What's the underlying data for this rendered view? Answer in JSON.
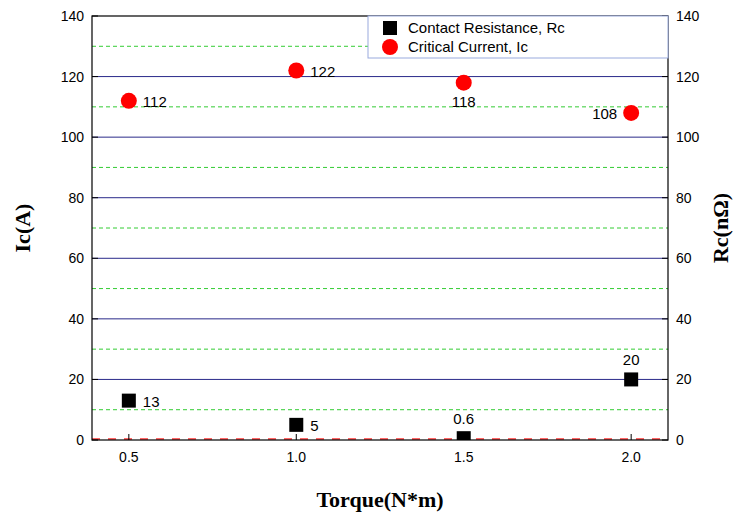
{
  "chart_data": {
    "type": "scatter",
    "x_label": "Torque(N*m)",
    "y_label": "Ic(A)",
    "y2_label": "Rc(nΩ)",
    "x": [
      0.5,
      1.0,
      1.5,
      2.0
    ],
    "series": [
      {
        "name": "Contact Resistance, Rc",
        "color": "#000000",
        "marker": "square",
        "axis": "y2",
        "values": [
          13,
          5,
          0.6,
          20
        ]
      },
      {
        "name": "Critical Current, Ic",
        "color": "#ff0000",
        "marker": "circle",
        "values": [
          112,
          122,
          118,
          108
        ]
      }
    ],
    "xlim": [
      0.39,
      2.11
    ],
    "xticks": [
      0.5,
      {
        "value": 1.0,
        "label": "1.0"
      },
      1.5,
      {
        "value": 2.0,
        "label": "2.0"
      }
    ],
    "ylim": [
      0,
      140
    ],
    "yticks": [
      0,
      20,
      40,
      60,
      80,
      100,
      120,
      140
    ],
    "y2lim": [
      0,
      140
    ],
    "y2ticks": [
      0,
      20,
      40,
      60,
      80,
      100,
      120,
      140
    ],
    "grid": true,
    "legend": "upper right",
    "data_labels": true
  }
}
